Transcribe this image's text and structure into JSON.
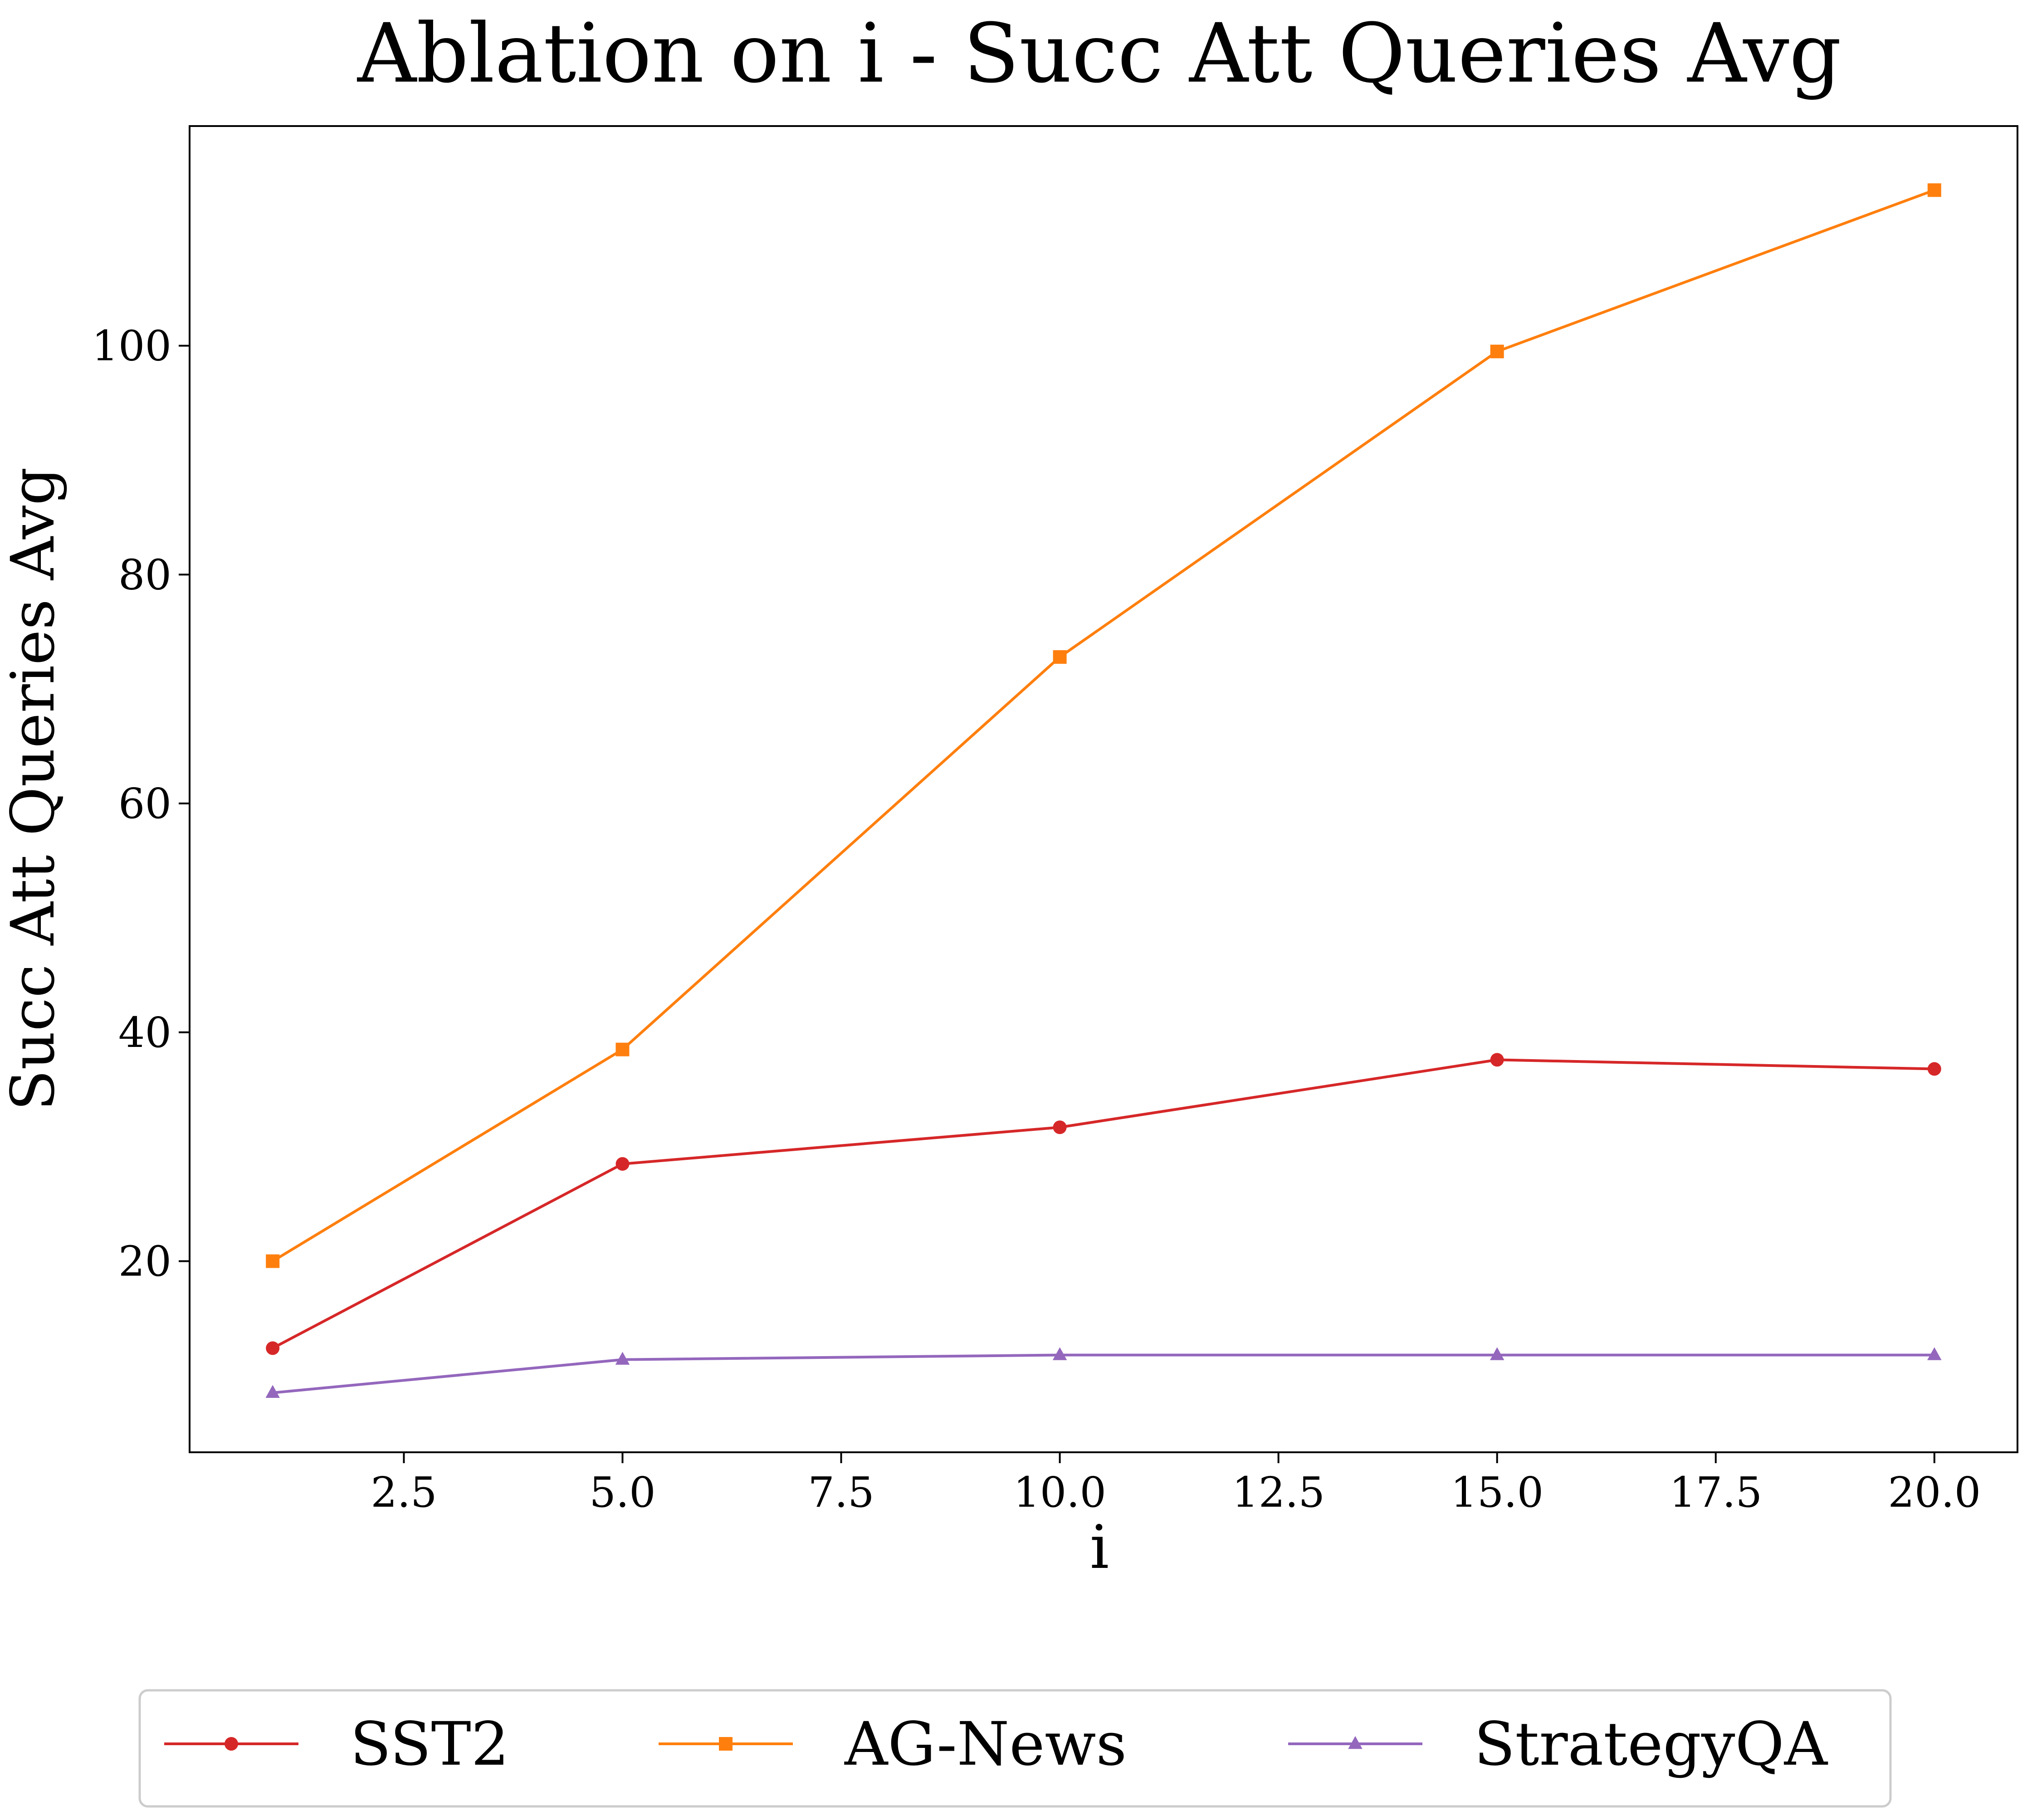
{
  "chart_data": {
    "type": "line",
    "title": "Ablation on i - Succ Att Queries Avg",
    "xlabel": "i",
    "ylabel": "Succ Att Queries Avg",
    "xlim": [
      0.05,
      20.95
    ],
    "ylim": [
      3.3,
      119.2
    ],
    "xticks": [
      2.5,
      5.0,
      7.5,
      10.0,
      12.5,
      15.0,
      17.5,
      20.0
    ],
    "xtick_labels": [
      "2.5",
      "5.0",
      "7.5",
      "10.0",
      "12.5",
      "15.0",
      "17.5",
      "20.0"
    ],
    "yticks": [
      20,
      40,
      60,
      80,
      100
    ],
    "ytick_labels": [
      "20",
      "40",
      "60",
      "80",
      "100"
    ],
    "grid": false,
    "legend_position": "bottom-center",
    "x": [
      1,
      5,
      10,
      15,
      20
    ],
    "series": [
      {
        "name": "SST2",
        "color": "#d62728",
        "marker": "circle",
        "values": [
          12.4,
          28.5,
          31.7,
          37.6,
          36.8
        ]
      },
      {
        "name": "AG-News",
        "color": "#ff7f0e",
        "marker": "square",
        "values": [
          20.0,
          38.5,
          72.8,
          99.5,
          113.6
        ]
      },
      {
        "name": "StrategyQA",
        "color": "#9467bd",
        "marker": "triangle",
        "values": [
          8.5,
          11.4,
          11.8,
          11.8,
          11.8
        ]
      }
    ]
  }
}
